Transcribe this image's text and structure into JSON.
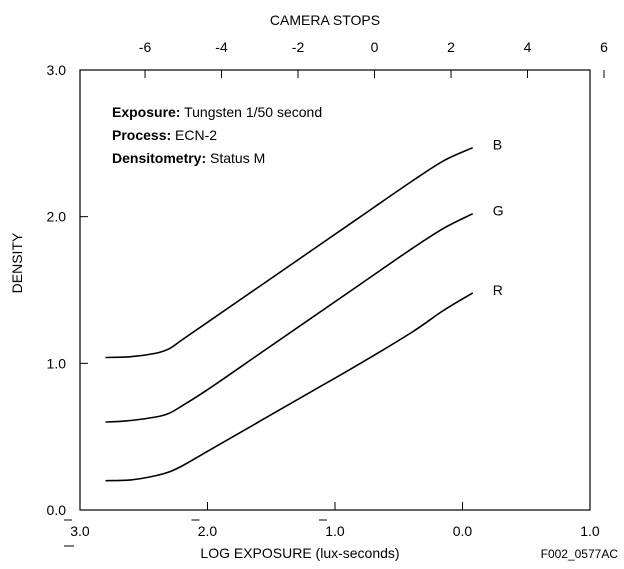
{
  "chart_data": {
    "type": "line",
    "title": "",
    "xlabel": "LOG EXPOSURE (lux-seconds)",
    "ylabel": "DENSITY",
    "top_axis_label": "CAMERA STOPS",
    "figure_id": "F002_0577AC",
    "xlim": [
      -3.0,
      1.0
    ],
    "ylim": [
      0.0,
      3.0
    ],
    "x_ticks": [
      {
        "x": -3.0,
        "digit": "3",
        "suffix": ".0",
        "bar": true
      },
      {
        "x": -2.0,
        "digit": "2",
        "suffix": ".0",
        "bar": true
      },
      {
        "x": -1.0,
        "digit": "1",
        "suffix": ".0",
        "bar": true
      },
      {
        "x": 0.0,
        "digit": "0",
        "suffix": ".0",
        "bar": false
      },
      {
        "x": 1.0,
        "digit": "1",
        "suffix": ".0",
        "bar": false
      }
    ],
    "y_ticks": [
      {
        "y": 0.0,
        "label": "0.0"
      },
      {
        "y": 1.0,
        "label": "1.0"
      },
      {
        "y": 2.0,
        "label": "2.0"
      },
      {
        "y": 3.0,
        "label": "3.0"
      }
    ],
    "top_ticks": [
      {
        "x": -2.49,
        "label": "-6"
      },
      {
        "x": -1.89,
        "label": "-4"
      },
      {
        "x": -1.29,
        "label": "-2"
      },
      {
        "x": -0.69,
        "label": "0"
      },
      {
        "x": -0.09,
        "label": "2"
      },
      {
        "x": 0.51,
        "label": "4"
      },
      {
        "x": 1.11,
        "label": "6"
      }
    ],
    "annotations": [
      {
        "bold": "Exposure:",
        "text": " Tungsten 1/50 second"
      },
      {
        "bold": "Process:",
        "text": " ECN-2"
      },
      {
        "bold": "Densitometry:",
        "text": "  Status M"
      }
    ],
    "series": [
      {
        "name": "B",
        "points": [
          [
            -2.8,
            1.04
          ],
          [
            -2.6,
            1.045
          ],
          [
            -2.4,
            1.07
          ],
          [
            -2.3,
            1.1
          ],
          [
            -2.2,
            1.16
          ],
          [
            -2.0,
            1.28
          ],
          [
            -1.6,
            1.52
          ],
          [
            -1.2,
            1.76
          ],
          [
            -0.8,
            2.0
          ],
          [
            -0.4,
            2.24
          ],
          [
            -0.15,
            2.38
          ],
          [
            0.08,
            2.47
          ]
        ]
      },
      {
        "name": "G",
        "points": [
          [
            -2.8,
            0.6
          ],
          [
            -2.6,
            0.61
          ],
          [
            -2.4,
            0.635
          ],
          [
            -2.3,
            0.66
          ],
          [
            -2.2,
            0.71
          ],
          [
            -2.0,
            0.82
          ],
          [
            -1.6,
            1.06
          ],
          [
            -1.2,
            1.3
          ],
          [
            -0.8,
            1.54
          ],
          [
            -0.4,
            1.78
          ],
          [
            -0.15,
            1.92
          ],
          [
            0.08,
            2.02
          ]
        ]
      },
      {
        "name": "R",
        "points": [
          [
            -2.8,
            0.2
          ],
          [
            -2.6,
            0.205
          ],
          [
            -2.4,
            0.235
          ],
          [
            -2.3,
            0.26
          ],
          [
            -2.2,
            0.3
          ],
          [
            -2.0,
            0.4
          ],
          [
            -1.6,
            0.6
          ],
          [
            -1.2,
            0.8
          ],
          [
            -0.8,
            1.0
          ],
          [
            -0.4,
            1.21
          ],
          [
            -0.15,
            1.36
          ],
          [
            0.08,
            1.48
          ]
        ]
      }
    ]
  }
}
